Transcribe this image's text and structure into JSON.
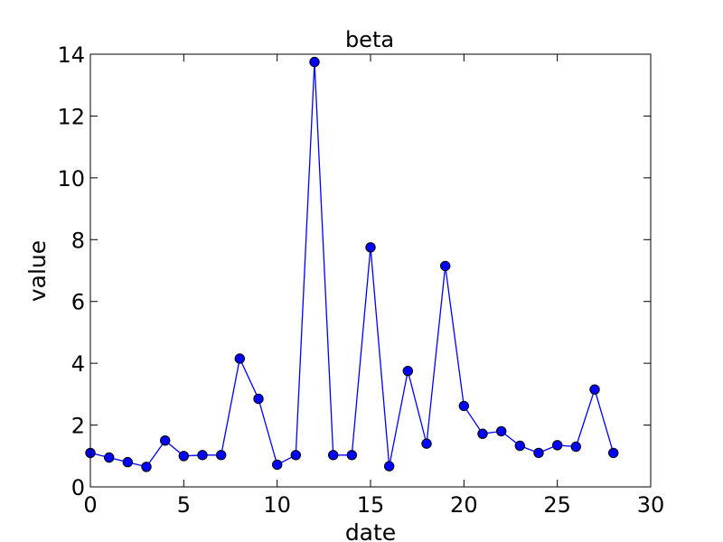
{
  "chart_data": {
    "type": "line",
    "title": "beta",
    "xlabel": "date",
    "ylabel": "value",
    "xlim": [
      0,
      30
    ],
    "ylim": [
      0,
      14
    ],
    "xticks": [
      0,
      5,
      10,
      15,
      20,
      25,
      30
    ],
    "yticks": [
      0,
      2,
      4,
      6,
      8,
      10,
      12,
      14
    ],
    "xtick_labels": [
      "0",
      "5",
      "10",
      "15",
      "20",
      "25",
      "30"
    ],
    "ytick_labels": [
      "0",
      "2",
      "4",
      "6",
      "8",
      "10",
      "12",
      "14"
    ],
    "grid": false,
    "series": [
      {
        "color": "#0000ff",
        "marker": "circle",
        "x": [
          0,
          1,
          2,
          3,
          4,
          5,
          6,
          7,
          8,
          9,
          10,
          11,
          12,
          13,
          14,
          15,
          16,
          17,
          18,
          19,
          20,
          21,
          22,
          23,
          24,
          25,
          26,
          27,
          28
        ],
        "y": [
          1.1,
          0.95,
          0.8,
          0.65,
          1.5,
          1.0,
          1.03,
          1.03,
          4.15,
          2.85,
          0.72,
          1.03,
          13.75,
          1.03,
          1.03,
          7.75,
          0.67,
          3.75,
          1.4,
          7.15,
          2.62,
          1.72,
          1.8,
          1.33,
          1.1,
          1.35,
          1.3,
          3.15,
          1.1
        ]
      }
    ]
  }
}
